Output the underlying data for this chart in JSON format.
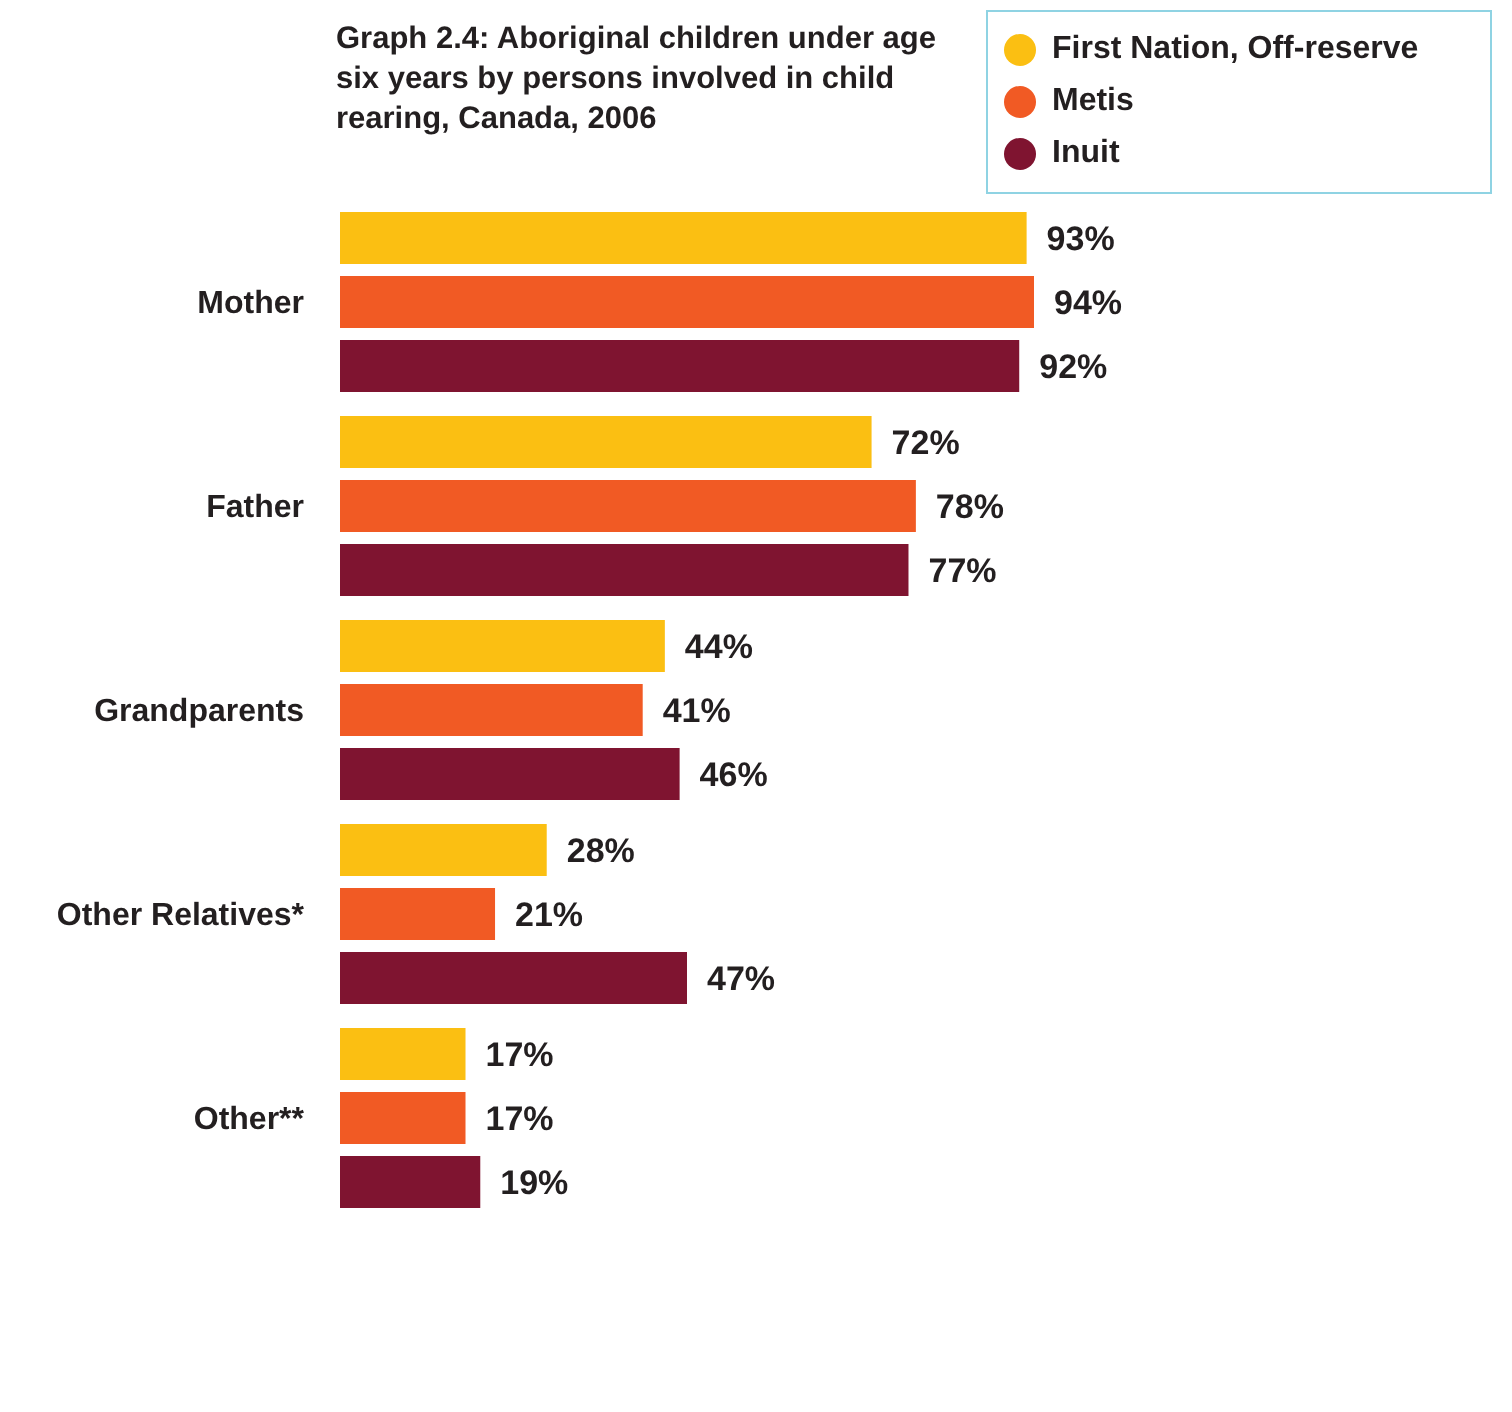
{
  "chart_data": {
    "type": "bar",
    "orientation": "horizontal",
    "title": "Graph 2.4: Aboriginal children under age six years by persons involved in child rearing, Canada, 2006",
    "categories": [
      "Mother",
      "Father",
      "Grandparents",
      "Other Relatives*",
      "Other**"
    ],
    "legend": "top right",
    "series": [
      {
        "name": "First Nation, Off-reserve",
        "color": "#fbbf12",
        "values": [
          93,
          72,
          44,
          28,
          17
        ],
        "value_labels": [
          "93%",
          "72%",
          "44%",
          "28%",
          "17%"
        ]
      },
      {
        "name": "Metis",
        "color": "#f15a24",
        "values": [
          94,
          78,
          41,
          21,
          17
        ],
        "value_labels": [
          "94%",
          "78%",
          "41%",
          "21%",
          "17%"
        ]
      },
      {
        "name": "Inuit",
        "color": "#7f1430",
        "values": [
          92,
          77,
          46,
          47,
          19
        ],
        "value_labels": [
          "92%",
          "77%",
          "46%",
          "47%",
          "19%"
        ]
      }
    ]
  }
}
